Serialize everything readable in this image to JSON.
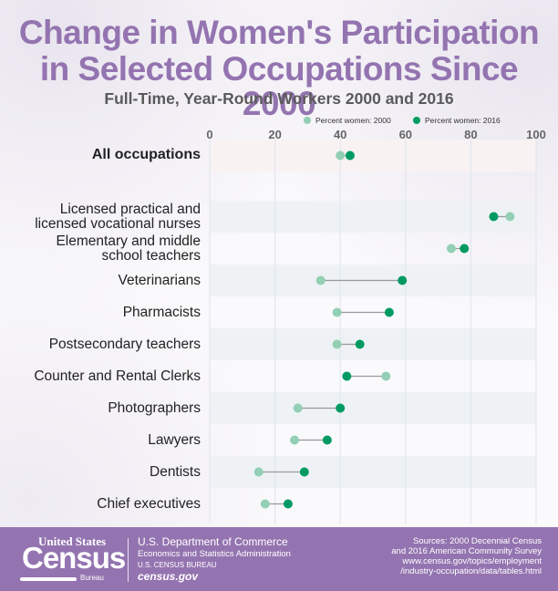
{
  "header": {
    "title_line1": "Change in Women's Participation",
    "title_line2": "in Selected Occupations Since 2000",
    "subtitle": "Full-Time, Year-Round Workers 2000 and 2016"
  },
  "chart_data": {
    "type": "dumbbell",
    "title": "Change in Women's Participation in Selected Occupations Since 2000",
    "subtitle": "Full-Time, Year-Round Workers 2000 and 2016",
    "xlabel": "Percent women",
    "xlim": [
      0,
      100
    ],
    "xticks": [
      "0",
      "20",
      "40",
      "60",
      "80",
      "100"
    ],
    "grid": true,
    "legend_position": "top-right",
    "categories": [
      "All occupations",
      "Licensed practical and licensed vocational nurses",
      "Elementary and middle school teachers",
      "Veterinarians",
      "Pharmacists",
      "Postsecondary teachers",
      "Counter and Rental Clerks",
      "Photographers",
      "Lawyers",
      "Dentists",
      "Chief executives"
    ],
    "category_labels": [
      [
        "All occupations"
      ],
      [
        "Licensed practical and",
        "licensed vocational nurses"
      ],
      [
        "Elementary and middle",
        "school teachers"
      ],
      [
        "Veterinarians"
      ],
      [
        "Pharmacists"
      ],
      [
        "Postsecondary teachers"
      ],
      [
        "Counter and Rental Clerks"
      ],
      [
        "Photographers"
      ],
      [
        "Lawyers"
      ],
      [
        "Dentists"
      ],
      [
        "Chief executives"
      ]
    ],
    "series": [
      {
        "name": "Percent women: 2000",
        "color": "#93cfb4",
        "values": [
          40,
          92,
          74,
          34,
          39,
          39,
          54,
          27,
          26,
          15,
          17
        ]
      },
      {
        "name": "Percent women: 2016",
        "color": "#009a63",
        "values": [
          43,
          87,
          78,
          59,
          55,
          46,
          42,
          40,
          36,
          29,
          24
        ]
      }
    ]
  },
  "footer": {
    "logo_top": "United States",
    "logo_main": "Census",
    "logo_bottom": "Bureau",
    "dept": "U.S. Department of Commerce",
    "esa": "Economics and Statistics Administration",
    "bureau": "U.S. CENSUS BUREAU",
    "site": "census.gov",
    "sources": [
      "Sources: 2000 Decennial Census",
      "and 2016 American Community Survey",
      "www.census.gov/topics/employment",
      "/industry-occupation/data/tables.html"
    ]
  },
  "colors": {
    "accent": "#9474b0",
    "c2000": "#93cfb4",
    "c2016": "#009a63"
  }
}
